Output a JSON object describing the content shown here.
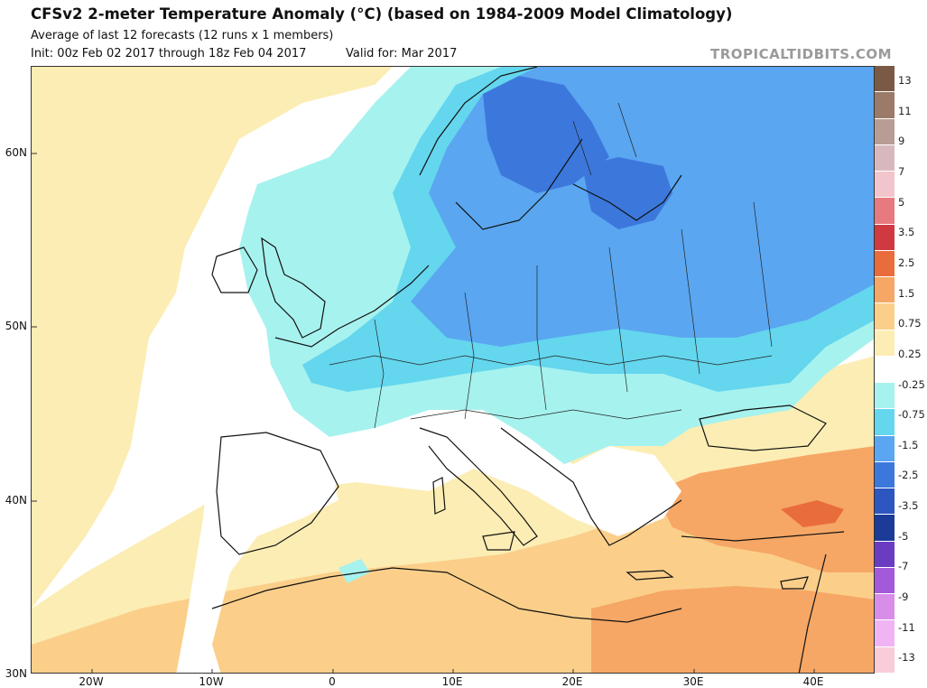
{
  "header": {
    "title": "CFSv2 2-meter Temperature Anomaly (°C) (based on 1984-2009 Model Climatology)",
    "subtitle": "Average of last 12 forecasts (12 runs x 1 members)",
    "init": "Init: 00z Feb 02 2017 through 18z Feb 04 2017",
    "valid": "Valid for: Mar 2017",
    "brand": "TROPICALTIDBITS.COM"
  },
  "axes": {
    "lat_labels": [
      "60N",
      "50N",
      "40N",
      "30N"
    ],
    "lon_labels": [
      "20W",
      "10W",
      "0",
      "10E",
      "20E",
      "30E",
      "40E"
    ]
  },
  "colorbar": {
    "labels": [
      "13",
      "11",
      "9",
      "7",
      "5",
      "3.5",
      "2.5",
      "1.5",
      "0.75",
      "0.25",
      "-0.25",
      "-0.75",
      "-1.5",
      "-2.5",
      "-3.5",
      "-5",
      "-7",
      "-9",
      "-11",
      "-13"
    ],
    "colors": [
      "#7a5a45",
      "#9c7a6a",
      "#b89c96",
      "#d8b8be",
      "#f2c4cc",
      "#e77a80",
      "#cf3a40",
      "#e96c3c",
      "#f6a765",
      "#fbcf8a",
      "#fcedb4",
      "#ffffff",
      "#a6f2ee",
      "#64d6ee",
      "#5aa6f0",
      "#3c78dc",
      "#2e56c0",
      "#1c3a98",
      "#6a3cc2",
      "#a25ad8",
      "#d88ee8",
      "#f0b4f4",
      "#f8ccd8"
    ]
  },
  "map_colors": {
    "land_line": "#111111",
    "warm_light": "#fcedb4",
    "warm_mid": "#fbcf8a",
    "warm_strong": "#f6a765",
    "warm_hot": "#e96c3c",
    "cool_light": "#a6f2ee",
    "cool_mid": "#64d6ee",
    "cool_blue": "#5aa6f0",
    "cool_deep": "#3c78dc"
  }
}
